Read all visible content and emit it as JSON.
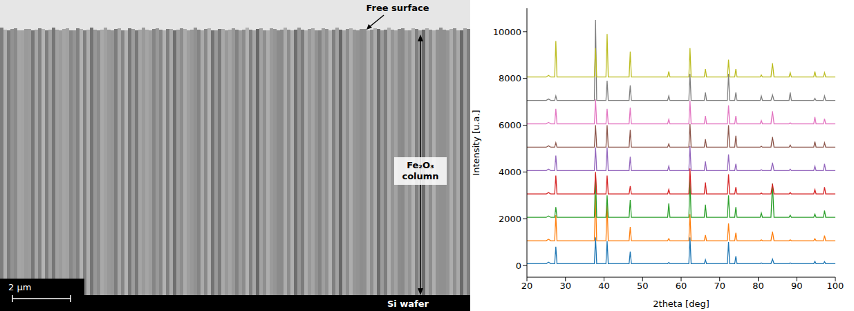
{
  "chart_data": {
    "type": "line",
    "x_label": "2theta [deg]",
    "y_label": "Intensity [u.a.]",
    "x": [
      20,
      25,
      25.6,
      26.2,
      27.2,
      27.5,
      27.8,
      37.5,
      37.8,
      38.1,
      40.5,
      40.8,
      41.1,
      46.5,
      46.8,
      47.1,
      56.5,
      56.8,
      57.1,
      62.0,
      62.3,
      62.6,
      66.0,
      66.3,
      66.6,
      72.0,
      72.3,
      72.6,
      73.9,
      74.2,
      74.5,
      80.5,
      80.8,
      81.1,
      83.3,
      83.7,
      84.1,
      88.0,
      88.3,
      88.6,
      94.4,
      94.7,
      95.0,
      96.9,
      97.2,
      97.5,
      100
    ],
    "series": [
      {
        "color": "#1f77b4",
        "values": [
          80,
          80,
          140,
          80,
          80,
          800,
          80,
          80,
          1200,
          80,
          80,
          1050,
          80,
          80,
          600,
          80,
          80,
          130,
          80,
          80,
          1200,
          80,
          80,
          250,
          80,
          80,
          1000,
          80,
          80,
          400,
          80,
          80,
          110,
          80,
          80,
          280,
          80,
          80,
          110,
          80,
          80,
          180,
          80,
          80,
          170,
          80,
          80
        ]
      },
      {
        "color": "#ff7f0e",
        "values": [
          1060,
          1060,
          1120,
          1060,
          1060,
          2150,
          1060,
          1060,
          3000,
          1060,
          1060,
          2600,
          1060,
          1060,
          1650,
          1060,
          1060,
          1150,
          1060,
          1060,
          2200,
          1060,
          1060,
          1300,
          1060,
          1060,
          1800,
          1060,
          1060,
          1400,
          1060,
          1060,
          1100,
          1060,
          1060,
          1450,
          1060,
          1060,
          1100,
          1060,
          1060,
          1150,
          1060,
          1060,
          1280,
          1060,
          1060
        ]
      },
      {
        "color": "#2ca02c",
        "values": [
          2060,
          2060,
          2120,
          2060,
          2060,
          2500,
          2060,
          2060,
          3900,
          2060,
          2060,
          3000,
          2060,
          2060,
          2800,
          2060,
          2060,
          2650,
          2060,
          2060,
          3700,
          2060,
          2060,
          2600,
          2060,
          2060,
          3000,
          2060,
          2060,
          2500,
          2060,
          2060,
          2250,
          2060,
          2060,
          3500,
          2060,
          2060,
          2150,
          2060,
          2060,
          2200,
          2060,
          2060,
          2350,
          2060,
          2060
        ]
      },
      {
        "color": "#d62728",
        "values": [
          3060,
          3060,
          3120,
          3060,
          3060,
          3850,
          3060,
          3060,
          4000,
          3060,
          3060,
          3850,
          3060,
          3060,
          3400,
          3060,
          3060,
          3250,
          3060,
          3060,
          4150,
          3060,
          3060,
          3550,
          3060,
          3060,
          3900,
          3060,
          3060,
          3350,
          3060,
          3060,
          3100,
          3060,
          3060,
          3500,
          3060,
          3060,
          3120,
          3060,
          3060,
          3250,
          3060,
          3060,
          3350,
          3060,
          3060
        ]
      },
      {
        "color": "#9467bd",
        "values": [
          4060,
          4060,
          4120,
          4060,
          4060,
          4700,
          4060,
          4060,
          5050,
          4060,
          4060,
          5050,
          4060,
          4060,
          4650,
          4060,
          4060,
          4250,
          4060,
          4060,
          5100,
          4060,
          4060,
          4450,
          4060,
          4060,
          4750,
          4060,
          4060,
          4350,
          4060,
          4060,
          4100,
          4060,
          4060,
          4400,
          4060,
          4060,
          4120,
          4060,
          4060,
          4250,
          4060,
          4060,
          4350,
          4060,
          4060
        ]
      },
      {
        "color": "#8c564b",
        "values": [
          5060,
          5060,
          5120,
          5060,
          5060,
          5250,
          5060,
          5060,
          6000,
          5060,
          5060,
          6000,
          5060,
          5060,
          5800,
          5060,
          5060,
          5200,
          5060,
          5060,
          6050,
          5060,
          5060,
          5400,
          5060,
          5060,
          6000,
          5060,
          5060,
          5550,
          5060,
          5060,
          5100,
          5060,
          5060,
          5500,
          5060,
          5060,
          5150,
          5060,
          5060,
          5300,
          5060,
          5060,
          5250,
          5060,
          5060
        ]
      },
      {
        "color": "#e377c2",
        "values": [
          6060,
          6060,
          6120,
          6060,
          6060,
          6700,
          6060,
          6060,
          7100,
          6060,
          6060,
          6700,
          6060,
          6060,
          6750,
          6060,
          6060,
          6250,
          6060,
          6060,
          7050,
          6060,
          6060,
          6400,
          6060,
          6060,
          6850,
          6060,
          6060,
          6400,
          6060,
          6060,
          6200,
          6060,
          6060,
          6600,
          6060,
          6060,
          6100,
          6060,
          6060,
          6350,
          6060,
          6060,
          6280,
          6060,
          6060
        ]
      },
      {
        "color": "#7f7f7f",
        "values": [
          7060,
          7060,
          7120,
          7060,
          7060,
          7250,
          7060,
          7060,
          10500,
          7060,
          7060,
          7900,
          7060,
          7060,
          7700,
          7060,
          7060,
          7250,
          7060,
          7060,
          8200,
          7060,
          7060,
          7400,
          7060,
          7060,
          8200,
          7060,
          7060,
          7400,
          7060,
          7060,
          7250,
          7060,
          7060,
          7300,
          7060,
          7060,
          7400,
          7060,
          7060,
          7150,
          7060,
          7060,
          7250,
          7060,
          7060
        ]
      },
      {
        "color": "#bcbd22",
        "values": [
          8060,
          8060,
          8130,
          8060,
          8060,
          9600,
          8060,
          8060,
          9300,
          8060,
          8060,
          9900,
          8060,
          8060,
          9150,
          8060,
          8060,
          8300,
          8060,
          8060,
          9300,
          8060,
          8060,
          8400,
          8060,
          8060,
          8800,
          8060,
          8060,
          8400,
          8060,
          8060,
          8150,
          8060,
          8060,
          8650,
          8060,
          8060,
          8250,
          8060,
          8060,
          8300,
          8060,
          8060,
          8250,
          8060,
          8060
        ]
      }
    ],
    "xlim": [
      20,
      100
    ],
    "xticks": [
      20,
      30,
      40,
      50,
      60,
      70,
      80,
      90,
      100
    ],
    "ylim": [
      -500,
      11000
    ],
    "yticks": [
      0,
      2000,
      4000,
      6000,
      8000,
      10000
    ],
    "grid": false
  },
  "image_panel": {
    "labels": {
      "surface": "Free surface",
      "column": "Fe₂O₃ column",
      "substrate": "Si wafer",
      "scale_bar": "2 µm"
    }
  }
}
